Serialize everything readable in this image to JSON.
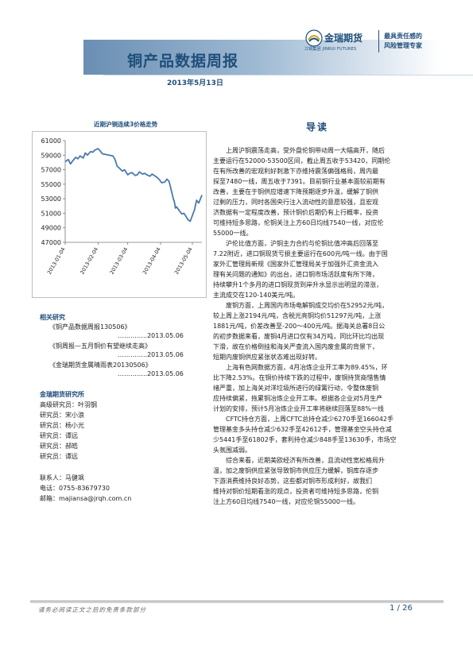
{
  "header": {
    "title": "铜产品数据周报",
    "date": "2013年5月13日",
    "logo_name": "金瑞期货",
    "logo_sub": "江铜集团 JINRUI FUTURES",
    "slogan": [
      "最具责任感的",
      "风险管理专家"
    ]
  },
  "chart_data": {
    "type": "line",
    "title": "近期沪铜连续3价格走势",
    "x_ticks": [
      "2013-01-04",
      "2013-02-04",
      "2013-03-04",
      "2013-04-04",
      "2013-05-04"
    ],
    "y_ticks": [
      61000,
      59000,
      57000,
      55000,
      53000,
      51000,
      49000,
      47000
    ],
    "ylim": [
      47000,
      61000
    ],
    "xlim": [
      "2013-01-04",
      "2013-05-13"
    ],
    "series": [
      {
        "color": "#4a79ae",
        "x": [
          "2013-01-04",
          "2013-01-07",
          "2013-01-09",
          "2013-01-11",
          "2013-01-14",
          "2013-01-16",
          "2013-01-18",
          "2013-01-21",
          "2013-01-23",
          "2013-01-25",
          "2013-01-28",
          "2013-01-30",
          "2013-02-01",
          "2013-02-04",
          "2013-02-06",
          "2013-02-08",
          "2013-02-18",
          "2013-02-20",
          "2013-02-22",
          "2013-02-25",
          "2013-02-27",
          "2013-03-01",
          "2013-03-04",
          "2013-03-06",
          "2013-03-08",
          "2013-03-11",
          "2013-03-13",
          "2013-03-15",
          "2013-03-18",
          "2013-03-20",
          "2013-03-22",
          "2013-03-25",
          "2013-03-27",
          "2013-03-29",
          "2013-04-01",
          "2013-04-03",
          "2013-04-05",
          "2013-04-08",
          "2013-04-10",
          "2013-04-12",
          "2013-04-15",
          "2013-04-16",
          "2013-04-17",
          "2013-04-18",
          "2013-04-19",
          "2013-04-22",
          "2013-04-24",
          "2013-04-26",
          "2013-04-30",
          "2013-05-02",
          "2013-05-06",
          "2013-05-08",
          "2013-05-10",
          "2013-05-13"
        ],
        "values": [
          58100,
          58400,
          57800,
          58200,
          58700,
          58500,
          58900,
          58600,
          59300,
          59000,
          59500,
          59400,
          59700,
          59900,
          59600,
          59200,
          58900,
          58400,
          57500,
          57100,
          56800,
          57000,
          56300,
          56500,
          56600,
          56200,
          56300,
          56700,
          56400,
          56500,
          56300,
          56100,
          56400,
          56200,
          55900,
          55600,
          55200,
          55300,
          55700,
          55400,
          53600,
          53000,
          52600,
          51700,
          51900,
          51300,
          50900,
          51000,
          50100,
          49900,
          51500,
          52800,
          52400,
          53500
        ]
      }
    ]
  },
  "related": {
    "heading": "相关研究",
    "items": [
      {
        "title": "《铜产品数据周报130506》",
        "date": "…………..2013.05.06"
      },
      {
        "title": "《铜周报—五月铜价有望继续走高》",
        "date": "…………..2013.05.06"
      },
      {
        "title": "《金瑞期货金属晴雨表20130506》",
        "date": "…………..2013.05.06"
      }
    ]
  },
  "institute": {
    "heading": "金瑞期货研究所",
    "staff": [
      "高级研究员：叶羽钢",
      "研究员：宋小浪",
      "研究员：杨小光",
      "研究员：谭远",
      "研究员：郝皓",
      "研究员：谭远"
    ],
    "contact_name": "联系人：马健飒",
    "phone": "电话：0755-83679730",
    "email": "邮箱：majiansa@jrqh.com.cn"
  },
  "guide": {
    "heading": "导读",
    "paragraphs": [
      [
        "上周沪铜震荡走高，受外盘伦铜带动周一大幅高开，随后",
        "主要运行在52000-53500区间，截止周五收于53420，同期伦",
        "在有所改善的宏观利好刺激下亦维持震荡偏强格局，周内最",
        "探至7480一线，周五收于7391。目前铜行业基本面较前期有",
        "改善，主要在于铜供应增速下降预期逐步升温，缓解了铜供",
        "过剩的压力，同时各国央行注入流动性的意愿较强，且宏观",
        "济数据有一定程度改善，预计铜价后期仍有上行概率，投资",
        "可维持短多思路，伦铜关注上方60日均线7540一线，对应伦",
        "55000一线。"
      ],
      [
        "沪伦比值方面，沪铜主力合约与伦铜比值冲高后回落至",
        "7.22附近，进口铜现货亏损主要运行在600元/吨一线。由于国",
        "家外汇管理局新规《国家外汇管理局关于加强外汇资金流入",
        "理有关问题的通知》的出台，进口铜市场活跃度有所下降，",
        "持续攀升1个多月的进口铜现货到岸升水显示出明显的滞涨，",
        "主流成交在120-140美元/吨。"
      ],
      [
        "废铜方面，上周国内市场电解铜成交均价在52952元/吨，",
        "较上周上涨2194元/吨，含税光亮铜均价51297元/吨，上涨",
        "1881元/吨，价差改善至-200～400元/吨。据海关总署8日公",
        "的初步数据来看，废铜4月进口仅有34万吨，同比环比均出现",
        "下滑，故在价格倒挂和海关严查流入国内废金属的背景下，",
        "短期内废铜供应紧张状态难出现好转。"
      ],
      [
        "上海有色网数据方面，4月冶炼企业开工率为89.45%，环",
        "比下降2.53%。在铜价持续下跌的过程中，废铜持货商惜售情",
        "绪严重，加上海关对洋垃圾所进行的绿篱行动，令整体废铜",
        "应持续偏紧，拖累铜冶炼企业开工率。根据各企业对5月生产",
        "计划的安排，预计5月冶炼企业开工率将继续回落至88%一线"
      ],
      [
        "CFTC持仓方面，上周CFTC总持仓减少6270手至166042手",
        "管理基金多头持仓减少632手至42612手，管理基金空头持仓减",
        "少5441手至61802手，套利持仓减少848手至13630手，市场空",
        "头氛围减弱。"
      ],
      [
        "综合来看，近期美欧经济有所改善，且流动性宽松格局升",
        "温，加之废铜供应紧张导致铜市供应压力缓解，铜库存逐步",
        "下游消费维持良好态势，这些都对铜市形成利好，故我们",
        "维持对铜价短期看涨的观点，投资者可维持短多思路，伦铜",
        "注上方60日均线7540一线，对应伦铜55000一线。"
      ]
    ]
  },
  "footer": {
    "disclaimer": "请务必阅读正文之后的免责条款部分",
    "page": "1 / 26"
  }
}
